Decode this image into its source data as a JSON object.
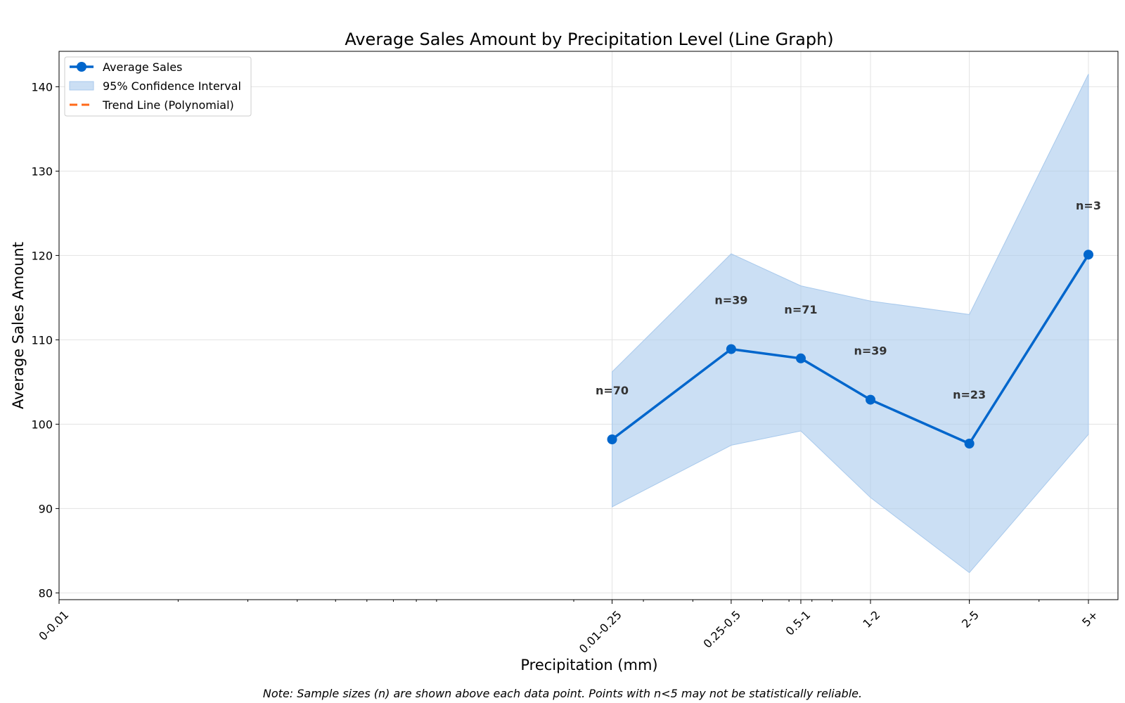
{
  "chart_data": {
    "type": "line",
    "title": "Average Sales Amount by Precipitation Level (Line Graph)",
    "xlabel": "Precipitation (mm)",
    "ylabel": "Average Sales Amount",
    "categories": [
      "0-0.01",
      "0.01-0.25",
      "0.25-0.5",
      "0.5-1",
      "1-2",
      "2-5",
      "5+"
    ],
    "x_scale": "log",
    "x_positions": [
      0.01,
      0.25,
      0.5,
      0.75,
      1.125,
      2.0,
      4.0
    ],
    "ylim": [
      79.2,
      144.2
    ],
    "yticks": [
      80,
      90,
      100,
      110,
      120,
      130,
      140
    ],
    "grid": true,
    "legend_position": "upper-left",
    "series": [
      {
        "name": "Average Sales",
        "color": "#0066cc",
        "x": [
          0.25,
          0.5,
          0.75,
          1.125,
          2.0,
          4.0
        ],
        "values": [
          98.2,
          108.9,
          107.8,
          102.9,
          97.7,
          120.1
        ],
        "n_labels": [
          "n=70",
          "n=39",
          "n=71",
          "n=39",
          "n=23",
          "n=3"
        ],
        "ci_upper": [
          106.2,
          120.2,
          116.4,
          114.6,
          113.0,
          141.5
        ],
        "ci_lower": [
          90.2,
          97.5,
          99.2,
          91.3,
          82.4,
          98.8
        ]
      }
    ],
    "legend": [
      {
        "label": "Average Sales",
        "kind": "line-marker",
        "color": "#0066cc"
      },
      {
        "label": "95% Confidence Interval",
        "kind": "patch",
        "color": "#a8c9ec"
      },
      {
        "label": "Trend Line (Polynomial)",
        "kind": "dashed",
        "color": "#ff6a1a"
      }
    ]
  },
  "note": "Note: Sample sizes (n) are shown above each data point. Points with n<5 may not be statistically reliable."
}
